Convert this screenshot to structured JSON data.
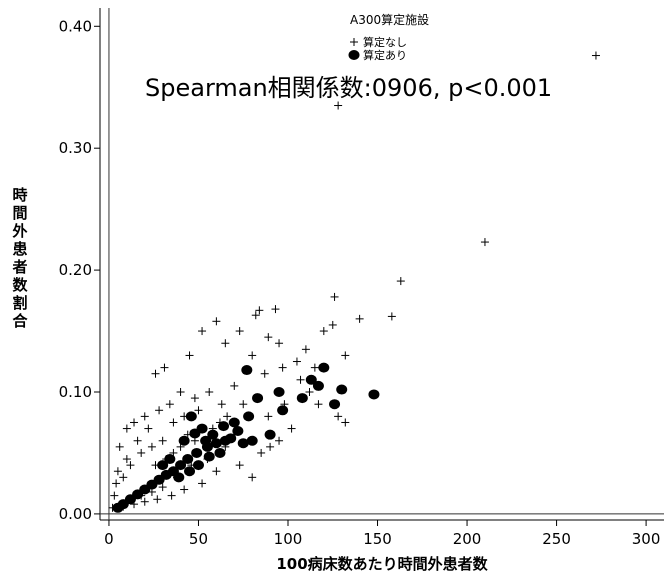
{
  "chart_data": {
    "type": "scatter",
    "title": "",
    "xlabel": "100病床数あたり時間外患者数",
    "ylabel": "時間外患者数割合",
    "xlim": [
      -5,
      310
    ],
    "ylim": [
      -0.005,
      0.415
    ],
    "x_ticks": [
      0,
      50,
      100,
      150,
      200,
      250,
      300
    ],
    "y_ticks": [
      0.0,
      0.1,
      0.2,
      0.3,
      0.4
    ],
    "x_tick_labels": [
      "0",
      "50",
      "100",
      "150",
      "200",
      "250",
      "300"
    ],
    "y_tick_labels": [
      "0.00",
      "0.10",
      "0.20",
      "0.30",
      "0.40"
    ],
    "reference_lines": {
      "x": 0,
      "y": 0
    },
    "annotation": "Spearman相関係数:0906, p<0.001",
    "legend": {
      "title": "A300算定施設",
      "placement": "top-center",
      "entries": [
        {
          "name": "算定なし",
          "marker": "plus"
        },
        {
          "name": "算定あり",
          "marker": "filled-circle"
        }
      ]
    },
    "series": [
      {
        "name": "算定なし",
        "marker": "plus",
        "color": "#000000",
        "points": [
          [
            272,
            0.376
          ],
          [
            128,
            0.335
          ],
          [
            210,
            0.223
          ],
          [
            163,
            0.191
          ],
          [
            126,
            0.178
          ],
          [
            93,
            0.168
          ],
          [
            84,
            0.167
          ],
          [
            82,
            0.163
          ],
          [
            158,
            0.162
          ],
          [
            140,
            0.16
          ],
          [
            89,
            0.145
          ],
          [
            95,
            0.14
          ],
          [
            120,
            0.15
          ],
          [
            125,
            0.155
          ],
          [
            52,
            0.15
          ],
          [
            60,
            0.158
          ],
          [
            73,
            0.15
          ],
          [
            65,
            0.14
          ],
          [
            45,
            0.13
          ],
          [
            31,
            0.12
          ],
          [
            26,
            0.115
          ],
          [
            80,
            0.13
          ],
          [
            110,
            0.135
          ],
          [
            105,
            0.125
          ],
          [
            115,
            0.12
          ],
          [
            132,
            0.13
          ],
          [
            97,
            0.12
          ],
          [
            107,
            0.11
          ],
          [
            112,
            0.1
          ],
          [
            117,
            0.09
          ],
          [
            128,
            0.08
          ],
          [
            132,
            0.075
          ],
          [
            87,
            0.115
          ],
          [
            89,
            0.08
          ],
          [
            98,
            0.09
          ],
          [
            70,
            0.105
          ],
          [
            63,
            0.09
          ],
          [
            56,
            0.1
          ],
          [
            48,
            0.095
          ],
          [
            40,
            0.1
          ],
          [
            34,
            0.09
          ],
          [
            28,
            0.085
          ],
          [
            20,
            0.08
          ],
          [
            14,
            0.075
          ],
          [
            10,
            0.07
          ],
          [
            6,
            0.055
          ],
          [
            5,
            0.035
          ],
          [
            4,
            0.025
          ],
          [
            3,
            0.015
          ],
          [
            2,
            0.005
          ],
          [
            80,
            0.03
          ],
          [
            73,
            0.04
          ],
          [
            85,
            0.05
          ],
          [
            60,
            0.035
          ],
          [
            52,
            0.025
          ],
          [
            42,
            0.02
          ],
          [
            35,
            0.015
          ],
          [
            27,
            0.012
          ],
          [
            20,
            0.01
          ],
          [
            14,
            0.008
          ],
          [
            8,
            0.006
          ],
          [
            46,
            0.04
          ],
          [
            38,
            0.03
          ],
          [
            30,
            0.022
          ],
          [
            24,
            0.018
          ],
          [
            18,
            0.015
          ],
          [
            12,
            0.012
          ],
          [
            65,
            0.055
          ],
          [
            55,
            0.045
          ],
          [
            95,
            0.06
          ],
          [
            102,
            0.07
          ],
          [
            90,
            0.055
          ],
          [
            70,
            0.065
          ],
          [
            30,
            0.06
          ],
          [
            24,
            0.055
          ],
          [
            18,
            0.05
          ],
          [
            12,
            0.04
          ],
          [
            16,
            0.06
          ],
          [
            22,
            0.07
          ],
          [
            36,
            0.075
          ],
          [
            42,
            0.08
          ],
          [
            50,
            0.085
          ],
          [
            58,
            0.07
          ],
          [
            66,
            0.08
          ],
          [
            75,
            0.09
          ],
          [
            8,
            0.03
          ],
          [
            10,
            0.045
          ],
          [
            26,
            0.04
          ],
          [
            32,
            0.045
          ],
          [
            40,
            0.055
          ],
          [
            48,
            0.06
          ],
          [
            56,
            0.062
          ],
          [
            62,
            0.075
          ],
          [
            44,
            0.065
          ],
          [
            36,
            0.05
          ]
        ]
      },
      {
        "name": "算定あり",
        "marker": "filled-circle",
        "color": "#000000",
        "points": [
          [
            148,
            0.098
          ],
          [
            120,
            0.12
          ],
          [
            113,
            0.11
          ],
          [
            117,
            0.105
          ],
          [
            130,
            0.102
          ],
          [
            126,
            0.09
          ],
          [
            108,
            0.095
          ],
          [
            95,
            0.1
          ],
          [
            97,
            0.085
          ],
          [
            77,
            0.118
          ],
          [
            83,
            0.095
          ],
          [
            78,
            0.08
          ],
          [
            70,
            0.075
          ],
          [
            90,
            0.065
          ],
          [
            65,
            0.06
          ],
          [
            72,
            0.068
          ],
          [
            60,
            0.058
          ],
          [
            55,
            0.055
          ],
          [
            49,
            0.05
          ],
          [
            44,
            0.045
          ],
          [
            40,
            0.04
          ],
          [
            36,
            0.035
          ],
          [
            32,
            0.032
          ],
          [
            28,
            0.028
          ],
          [
            24,
            0.024
          ],
          [
            20,
            0.02
          ],
          [
            16,
            0.016
          ],
          [
            12,
            0.012
          ],
          [
            8,
            0.008
          ],
          [
            5,
            0.005
          ],
          [
            46,
            0.08
          ],
          [
            52,
            0.07
          ],
          [
            58,
            0.065
          ],
          [
            64,
            0.072
          ],
          [
            68,
            0.062
          ],
          [
            62,
            0.05
          ],
          [
            56,
            0.047
          ],
          [
            50,
            0.04
          ],
          [
            45,
            0.035
          ],
          [
            39,
            0.03
          ],
          [
            34,
            0.045
          ],
          [
            30,
            0.04
          ],
          [
            42,
            0.06
          ],
          [
            48,
            0.066
          ],
          [
            54,
            0.06
          ],
          [
            75,
            0.058
          ],
          [
            80,
            0.06
          ]
        ]
      }
    ]
  }
}
